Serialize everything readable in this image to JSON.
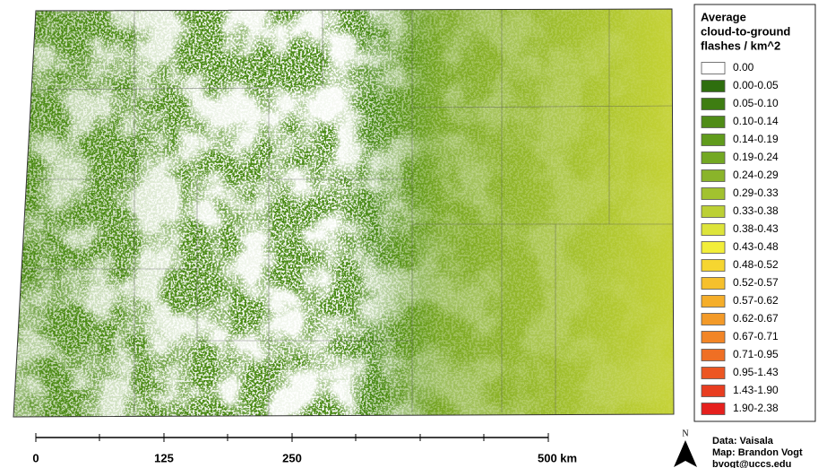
{
  "map": {
    "legend": {
      "title_lines": [
        "Average",
        "cloud-to-ground",
        "flashes / km^2"
      ],
      "items": [
        {
          "label": "0.00",
          "color": "#ffffff"
        },
        {
          "label": "0.00-0.05",
          "color": "#2e6e0e"
        },
        {
          "label": "0.05-0.10",
          "color": "#3e7d12"
        },
        {
          "label": "0.10-0.14",
          "color": "#4f8c17"
        },
        {
          "label": "0.14-0.19",
          "color": "#609b1c"
        },
        {
          "label": "0.19-0.24",
          "color": "#73a822"
        },
        {
          "label": "0.24-0.29",
          "color": "#8ab42a"
        },
        {
          "label": "0.29-0.33",
          "color": "#a2c22f"
        },
        {
          "label": "0.33-0.38",
          "color": "#bcd035"
        },
        {
          "label": "0.38-0.43",
          "color": "#dde43b"
        },
        {
          "label": "0.43-0.48",
          "color": "#f2ee3a"
        },
        {
          "label": "0.48-0.52",
          "color": "#f6d630"
        },
        {
          "label": "0.52-0.57",
          "color": "#f6c02c"
        },
        {
          "label": "0.57-0.62",
          "color": "#f5ae2a"
        },
        {
          "label": "0.62-0.67",
          "color": "#f39a28"
        },
        {
          "label": "0.67-0.71",
          "color": "#f28526"
        },
        {
          "label": "0.71-0.95",
          "color": "#ef6f24"
        },
        {
          "label": "0.95-1.43",
          "color": "#ec5622"
        },
        {
          "label": "1.43-1.90",
          "color": "#e83d20"
        },
        {
          "label": "1.90-2.38",
          "color": "#e5201d"
        }
      ]
    },
    "scale_bar": {
      "labels": [
        "0",
        "125",
        "250",
        "500 km"
      ]
    },
    "north_arrow": "N",
    "credits": [
      "Data: Vaisala",
      "Map: Brandon Vogt",
      "bvogt@uccs.edu"
    ]
  }
}
